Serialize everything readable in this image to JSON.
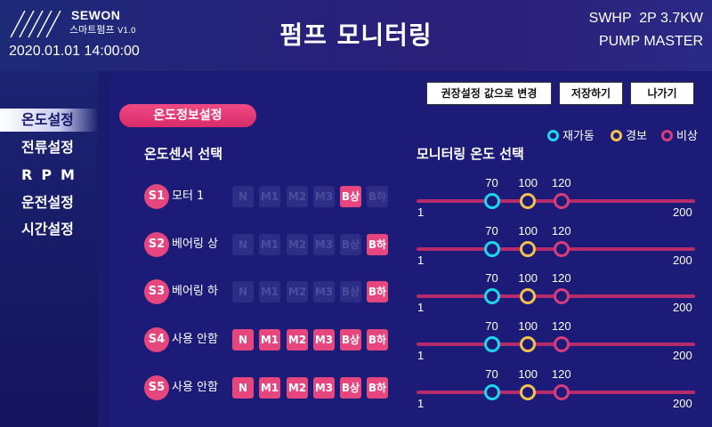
{
  "header": {
    "brand_name": "SEWON",
    "brand_sub": "스마트펌프",
    "brand_version": "V1.0",
    "datetime": "2020.01.01 14:00:00",
    "title": "펌프 모니터링",
    "model_line1": "SWHP  2P 3.7KW",
    "model_line2": "PUMP MASTER"
  },
  "sidebar": {
    "items": [
      {
        "label": "온도설정",
        "active": true
      },
      {
        "label": "전류설정",
        "active": false
      },
      {
        "label": "RPM",
        "active": false
      },
      {
        "label": "운전설정",
        "active": false
      },
      {
        "label": "시간설정",
        "active": false
      }
    ]
  },
  "toolbar": {
    "reset_label": "권장설정 값으로 변경",
    "save_label": "저장하기",
    "exit_label": "나가기"
  },
  "section": {
    "title": "온도정보설정",
    "sensor_heading": "온도센서 선택",
    "monitor_heading": "모니터링 온도 선택"
  },
  "legend": [
    {
      "label": "재가동",
      "color": "#1ed6ee"
    },
    {
      "label": "경보",
      "color": "#f2c14e"
    },
    {
      "label": "비상",
      "color": "#d93d7a"
    }
  ],
  "options": [
    "N",
    "M1",
    "M2",
    "M3",
    "B상",
    "B하"
  ],
  "sensors": [
    {
      "id": "S1",
      "name": "모터 1",
      "active": "B상",
      "all_active": false,
      "range_min": "1",
      "range_max": "200",
      "restart": "70",
      "alarm": "100",
      "emergency": "120",
      "restart_pos": 0.27,
      "alarm_pos": 0.4,
      "emergency_pos": 0.52
    },
    {
      "id": "S2",
      "name": "베어링 상",
      "active": "B하",
      "all_active": false,
      "range_min": "1",
      "range_max": "200",
      "restart": "70",
      "alarm": "100",
      "emergency": "120",
      "restart_pos": 0.27,
      "alarm_pos": 0.4,
      "emergency_pos": 0.52
    },
    {
      "id": "S3",
      "name": "베어링 하",
      "active": "B하",
      "all_active": false,
      "range_min": "1",
      "range_max": "200",
      "restart": "70",
      "alarm": "100",
      "emergency": "120",
      "restart_pos": 0.27,
      "alarm_pos": 0.4,
      "emergency_pos": 0.52
    },
    {
      "id": "S4",
      "name": "사용 안함",
      "active": "",
      "all_active": true,
      "range_min": "1",
      "range_max": "200",
      "restart": "70",
      "alarm": "100",
      "emergency": "120",
      "restart_pos": 0.27,
      "alarm_pos": 0.4,
      "emergency_pos": 0.52
    },
    {
      "id": "S5",
      "name": "사용 안함",
      "active": "",
      "all_active": true,
      "range_min": "1",
      "range_max": "200",
      "restart": "70",
      "alarm": "100",
      "emergency": "120",
      "restart_pos": 0.27,
      "alarm_pos": 0.4,
      "emergency_pos": 0.52
    }
  ]
}
